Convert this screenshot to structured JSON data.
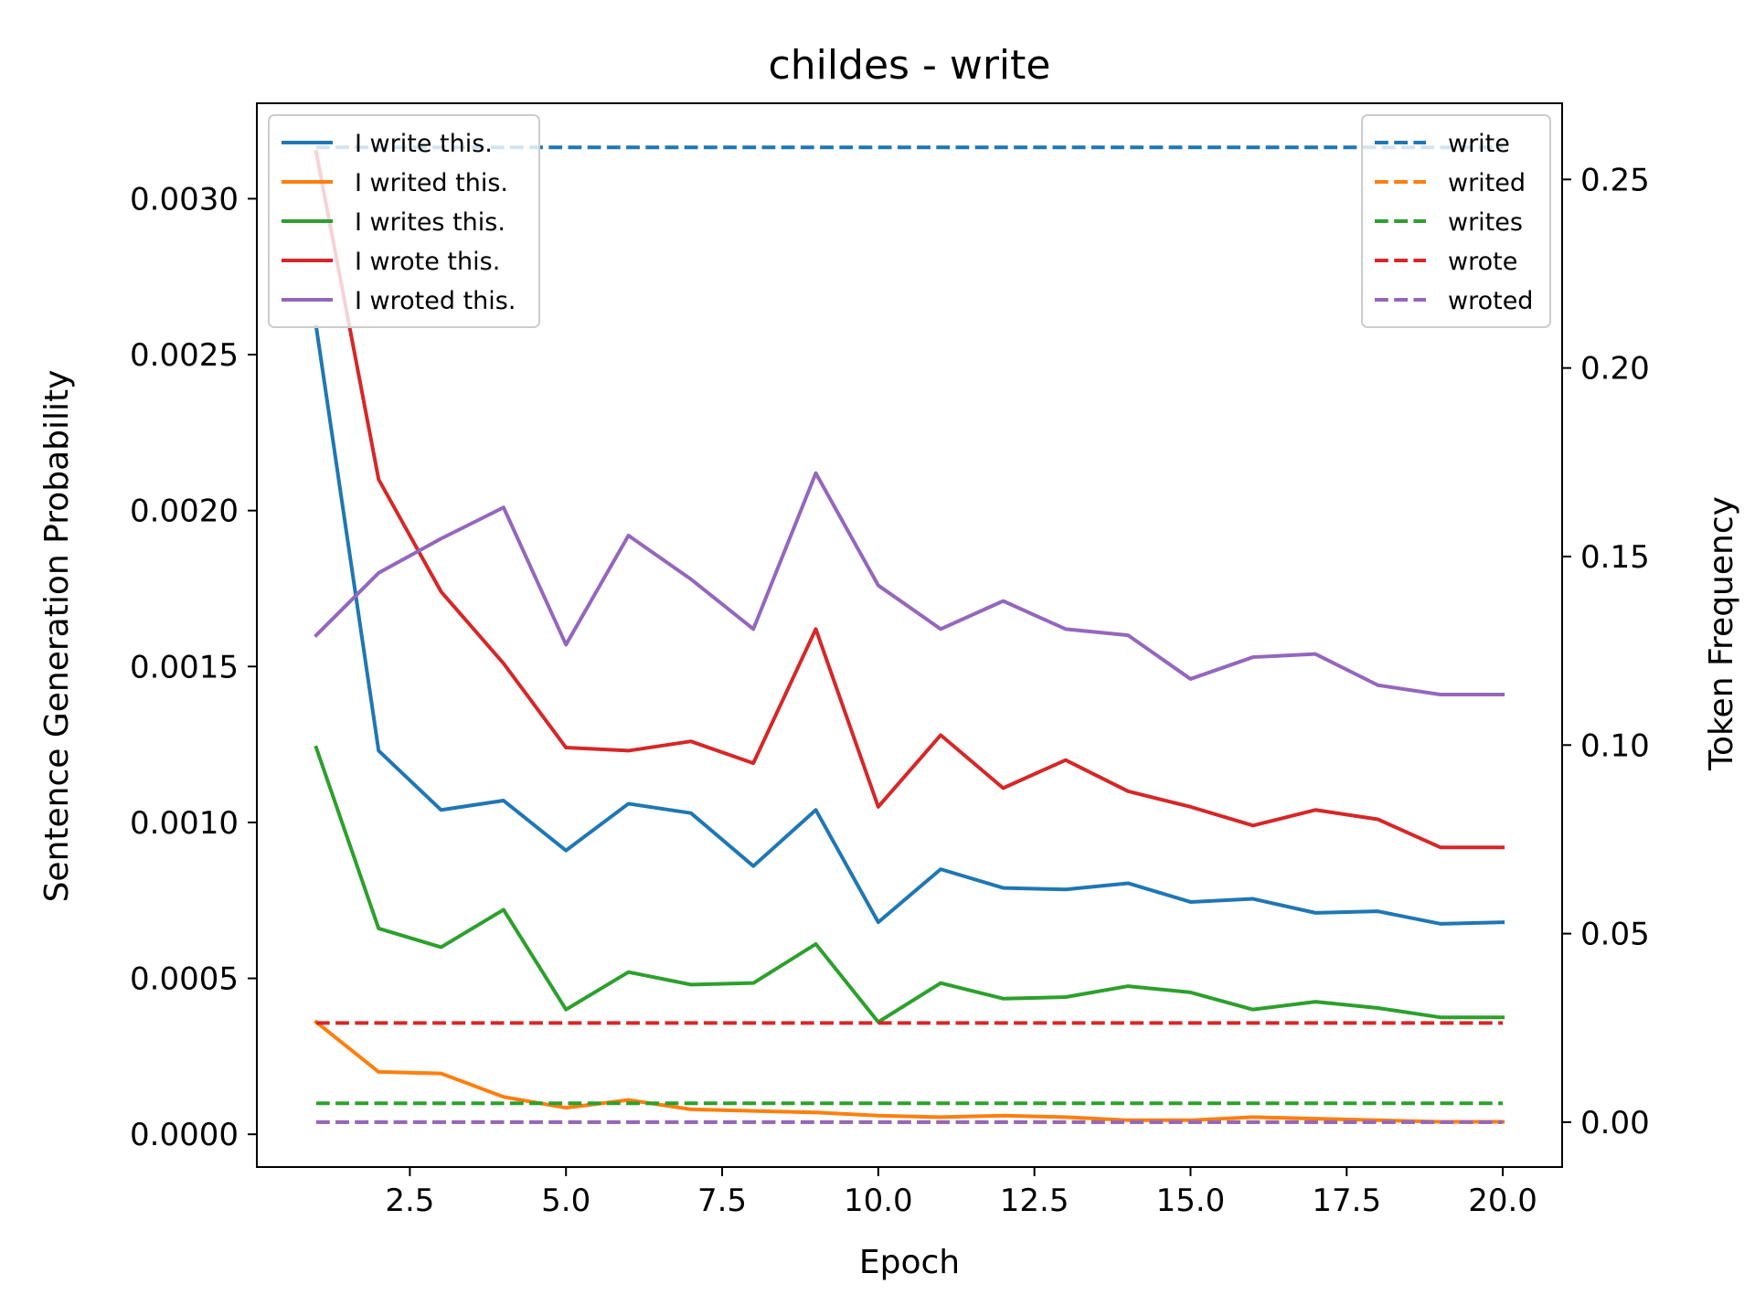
{
  "chart_data": {
    "type": "line",
    "title": "childes - write",
    "xlabel": "Epoch",
    "ylabel": "Sentence Generation Probability",
    "y2label": "Token Frequency",
    "grid": false,
    "xlim": [
      0.05,
      20.95
    ],
    "ylim": [
      -0.000105,
      0.003306
    ],
    "y2lim": [
      -0.0119,
      0.2702
    ],
    "x_ticks": [
      2.5,
      5.0,
      7.5,
      10.0,
      12.5,
      15.0,
      17.5,
      20.0
    ],
    "x_tick_labels": [
      "2.5",
      "5.0",
      "7.5",
      "10.0",
      "12.5",
      "15.0",
      "17.5",
      "20.0"
    ],
    "y_ticks": [
      0.0,
      0.0005,
      0.001,
      0.0015,
      0.002,
      0.0025,
      0.003
    ],
    "y_tick_labels": [
      "0.0000",
      "0.0005",
      "0.0010",
      "0.0015",
      "0.0020",
      "0.0025",
      "0.0030"
    ],
    "y2_ticks": [
      0.0,
      0.05,
      0.1,
      0.15,
      0.2,
      0.25
    ],
    "y2_tick_labels": [
      "0.00",
      "0.05",
      "0.10",
      "0.15",
      "0.20",
      "0.25"
    ],
    "x": [
      1,
      2,
      3,
      4,
      5,
      6,
      7,
      8,
      9,
      10,
      11,
      12,
      13,
      14,
      15,
      16,
      17,
      18,
      19,
      20
    ],
    "series": [
      {
        "name": "I write this.",
        "axis": "left",
        "style": "solid",
        "color": "#1f77b4",
        "values": [
          0.00259,
          0.00123,
          0.00104,
          0.00107,
          0.00091,
          0.00106,
          0.00103,
          0.00086,
          0.00104,
          0.00068,
          0.00085,
          0.00079,
          0.000785,
          0.000805,
          0.000745,
          0.000755,
          0.00071,
          0.000715,
          0.000675,
          0.00068
        ]
      },
      {
        "name": "I writed this.",
        "axis": "left",
        "style": "solid",
        "color": "#ff7f0e",
        "values": [
          0.00036,
          0.0002,
          0.000195,
          0.00012,
          8.5e-05,
          0.00011,
          8e-05,
          7.5e-05,
          7e-05,
          6e-05,
          5.5e-05,
          6e-05,
          5.5e-05,
          4.5e-05,
          4.5e-05,
          5.5e-05,
          5e-05,
          4.5e-05,
          4e-05,
          4e-05
        ]
      },
      {
        "name": "I writes this.",
        "axis": "left",
        "style": "solid",
        "color": "#2ca02c",
        "values": [
          0.00124,
          0.00066,
          0.0006,
          0.00072,
          0.0004,
          0.00052,
          0.00048,
          0.000485,
          0.00061,
          0.00036,
          0.000485,
          0.000435,
          0.00044,
          0.000475,
          0.000455,
          0.0004,
          0.000425,
          0.000405,
          0.000375,
          0.000375
        ]
      },
      {
        "name": "I wrote this.",
        "axis": "left",
        "style": "solid",
        "color": "#d62728",
        "values": [
          0.00315,
          0.0021,
          0.00174,
          0.00151,
          0.00124,
          0.00123,
          0.00126,
          0.00119,
          0.00162,
          0.00105,
          0.00128,
          0.00111,
          0.0012,
          0.0011,
          0.00105,
          0.00099,
          0.00104,
          0.00101,
          0.00092,
          0.00092
        ]
      },
      {
        "name": "I wroted this.",
        "axis": "left",
        "style": "solid",
        "color": "#9467bd",
        "values": [
          0.0016,
          0.0018,
          0.00191,
          0.00201,
          0.00157,
          0.00192,
          0.00178,
          0.00162,
          0.00212,
          0.00176,
          0.00162,
          0.00171,
          0.00162,
          0.0016,
          0.00146,
          0.00153,
          0.00154,
          0.00144,
          0.00141,
          0.00141
        ]
      },
      {
        "name": "write",
        "axis": "right",
        "style": "dashed",
        "color": "#1f77b4",
        "values": [
          0.2585,
          0.2585,
          0.2585,
          0.2585,
          0.2585,
          0.2585,
          0.2585,
          0.2585,
          0.2585,
          0.2585,
          0.2585,
          0.2585,
          0.2585,
          0.2585,
          0.2585,
          0.2585,
          0.2585,
          0.2585,
          0.2585,
          0.2585
        ]
      },
      {
        "name": "writed",
        "axis": "right",
        "style": "dashed",
        "color": "#ff7f0e",
        "values": [
          0.0,
          0.0,
          0.0,
          0.0,
          0.0,
          0.0,
          0.0,
          0.0,
          0.0,
          0.0,
          0.0,
          0.0,
          0.0,
          0.0,
          0.0,
          0.0,
          0.0,
          0.0,
          0.0,
          0.0
        ]
      },
      {
        "name": "writes",
        "axis": "right",
        "style": "dashed",
        "color": "#2ca02c",
        "values": [
          0.005,
          0.005,
          0.005,
          0.005,
          0.005,
          0.005,
          0.005,
          0.005,
          0.005,
          0.005,
          0.005,
          0.005,
          0.005,
          0.005,
          0.005,
          0.005,
          0.005,
          0.005,
          0.005,
          0.005
        ]
      },
      {
        "name": "wrote",
        "axis": "right",
        "style": "dashed",
        "color": "#d62728",
        "values": [
          0.0263,
          0.0263,
          0.0263,
          0.0263,
          0.0263,
          0.0263,
          0.0263,
          0.0263,
          0.0263,
          0.0263,
          0.0263,
          0.0263,
          0.0263,
          0.0263,
          0.0263,
          0.0263,
          0.0263,
          0.0263,
          0.0263,
          0.0263
        ]
      },
      {
        "name": "wroted",
        "axis": "right",
        "style": "dashed",
        "color": "#9467bd",
        "values": [
          0.0,
          0.0,
          0.0,
          0.0,
          0.0,
          0.0,
          0.0,
          0.0,
          0.0,
          0.0,
          0.0,
          0.0,
          0.0,
          0.0,
          0.0,
          0.0,
          0.0,
          0.0,
          0.0,
          0.0
        ]
      }
    ],
    "legends": [
      {
        "placement": "top-left",
        "entries": [
          "I write this.",
          "I writed this.",
          "I writes this.",
          "I wrote this.",
          "I wroted this."
        ]
      },
      {
        "placement": "top-right",
        "entries": [
          "write",
          "writed",
          "writes",
          "wrote",
          "wroted"
        ]
      }
    ]
  }
}
